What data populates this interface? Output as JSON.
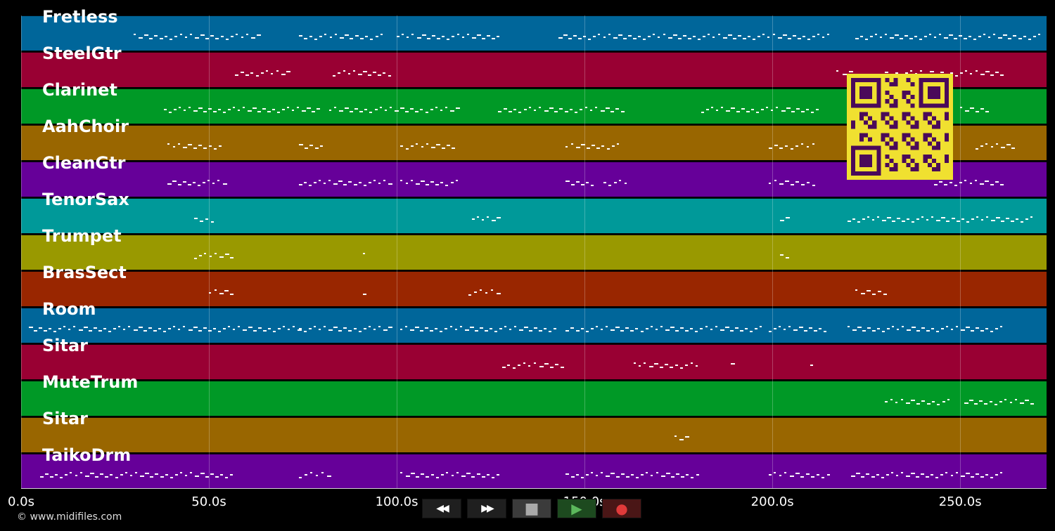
{
  "tracks": [
    {
      "name": "Fretless",
      "color": "#00669a"
    },
    {
      "name": "SteelGtr",
      "color": "#990033"
    },
    {
      "name": "Clarinet",
      "color": "#009926"
    },
    {
      "name": "AahChoir",
      "color": "#996600"
    },
    {
      "name": "CleanGtr",
      "color": "#660099"
    },
    {
      "name": "TenorSax",
      "color": "#009999"
    },
    {
      "name": "Trumpet",
      "color": "#999900"
    },
    {
      "name": "BrasSect",
      "color": "#992600"
    },
    {
      "name": "Room",
      "color": "#00669a"
    },
    {
      "name": "Sitar",
      "color": "#990033"
    },
    {
      "name": "MuteTrum",
      "color": "#009926"
    },
    {
      "name": "Sitar",
      "color": "#996600"
    },
    {
      "name": "TaikoDrm",
      "color": "#660099"
    }
  ],
  "timeline": {
    "max_seconds": 273,
    "ticks": [
      "0.0s",
      "50.0s",
      "100.0s",
      "150.0s",
      "200.0s",
      "250.0s"
    ]
  },
  "note_segments_seconds": [
    [
      [
        30,
        64
      ],
      [
        74,
        97
      ],
      [
        100,
        128
      ],
      [
        143,
        216
      ],
      [
        222,
        272
      ]
    ],
    [
      [
        57,
        72
      ],
      [
        83,
        99
      ],
      [
        217,
        222
      ],
      [
        230,
        262
      ]
    ],
    [
      [
        38,
        80
      ],
      [
        82,
        117
      ],
      [
        127,
        161
      ],
      [
        181,
        213
      ],
      [
        250,
        258
      ]
    ],
    [
      [
        39,
        54
      ],
      [
        74,
        81
      ],
      [
        101,
        116
      ],
      [
        145,
        160
      ],
      [
        199,
        212
      ],
      [
        254,
        265
      ]
    ],
    [
      [
        39,
        55
      ],
      [
        74,
        99
      ],
      [
        101,
        117
      ],
      [
        145,
        153
      ],
      [
        155,
        162
      ],
      [
        199,
        212
      ],
      [
        243,
        262
      ]
    ],
    [
      [
        46,
        52
      ],
      [
        120,
        128
      ],
      [
        202,
        205
      ],
      [
        220,
        270
      ]
    ],
    [
      [
        46,
        57
      ],
      [
        91,
        92
      ],
      [
        202,
        205
      ]
    ],
    [
      [
        50,
        57
      ],
      [
        91,
        92
      ],
      [
        119,
        128
      ],
      [
        222,
        231
      ]
    ],
    [
      [
        2,
        75
      ],
      [
        74,
        99
      ],
      [
        101,
        143
      ],
      [
        145,
        198
      ],
      [
        199,
        215
      ],
      [
        220,
        262
      ]
    ],
    [
      [
        128,
        145
      ],
      [
        163,
        181
      ],
      [
        189,
        191
      ],
      [
        210,
        212
      ]
    ],
    [
      [
        230,
        248
      ],
      [
        251,
        270
      ]
    ],
    [
      [
        174,
        178
      ]
    ],
    [
      [
        5,
        57
      ],
      [
        74,
        83
      ],
      [
        101,
        128
      ],
      [
        145,
        181
      ],
      [
        199,
        216
      ],
      [
        221,
        262
      ]
    ]
  ],
  "controls": [
    {
      "name": "rewind-button",
      "icon": "rewind-icon",
      "symbol": "◀◀"
    },
    {
      "name": "fast-forward-button",
      "icon": "fast-forward-icon",
      "symbol": "▶▶"
    },
    {
      "name": "stop-button",
      "icon": "stop-icon",
      "symbol": "■"
    },
    {
      "name": "play-button",
      "icon": "play-icon",
      "symbol": "▶"
    },
    {
      "name": "record-button",
      "icon": "record-icon",
      "symbol": "●"
    }
  ],
  "qr_color": "#f0e030",
  "qr_dark": "#4a0a5a",
  "copyright": "© www.midifiles.com"
}
